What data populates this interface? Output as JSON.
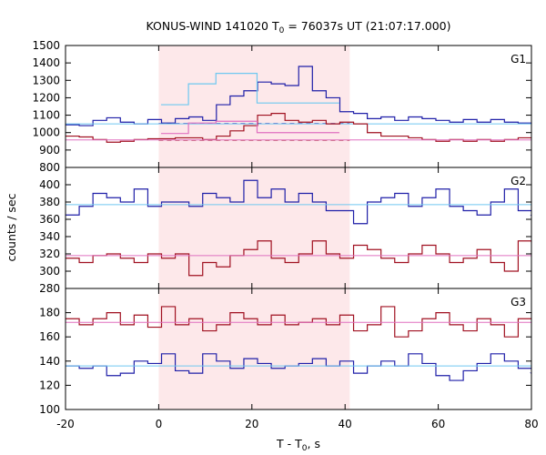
{
  "chart_data": {
    "type": "line",
    "title": "KONUS-WIND 141020 T",
    "title_sub": "0",
    "title_rest": " = 76037s UT (21:07:17.000)",
    "xlabel_pre": "T - T",
    "xlabel_sub": "0",
    "xlabel_post": ", s",
    "ylabel": "counts / sec",
    "xlim": [
      -20,
      80
    ],
    "xticks": [
      "-20",
      "0",
      "20",
      "40",
      "60",
      "80"
    ],
    "highlight_interval": [
      0,
      41
    ],
    "highlight_color": "#fde8ea",
    "step": 2.944,
    "panels": [
      {
        "label": "G1",
        "ylim": [
          800,
          1500
        ],
        "yticks": [
          "800",
          "900",
          "1000",
          "1100",
          "1200",
          "1300",
          "1400",
          "1500"
        ],
        "series": [
          {
            "color": "#1f1fa8",
            "style": "step",
            "x_start": -20,
            "values": [
              1045,
              1040,
              1070,
              1085,
              1060,
              1050,
              1075,
              1055,
              1080,
              1090,
              1070,
              1160,
              1210,
              1240,
              1290,
              1280,
              1270,
              1380,
              1240,
              1200,
              1120,
              1110,
              1080,
              1090,
              1070,
              1090,
              1080,
              1070,
              1060,
              1075,
              1060,
              1075,
              1060,
              1055,
              1070,
              1060
            ]
          },
          {
            "color": "#6fc8f0",
            "style": "step",
            "x_start": 0.5,
            "values": [
              1160,
              1160,
              1280,
              1280,
              1340,
              1340,
              1340,
              1170,
              1170,
              1170,
              1170,
              1170,
              1170
            ]
          },
          {
            "color": "#1f1fa8",
            "style": "dashed",
            "x": [
              0,
              41
            ],
            "y": [
              1052,
              1052
            ]
          },
          {
            "color": "#6fc8f0",
            "style": "flat",
            "x": [
              -20,
              80
            ],
            "y": [
              1050,
              1050
            ]
          },
          {
            "color": "#a01020",
            "style": "step",
            "x_start": -20,
            "values": [
              980,
              975,
              960,
              945,
              950,
              960,
              965,
              965,
              970,
              970,
              960,
              980,
              1010,
              1040,
              1100,
              1110,
              1070,
              1060,
              1070,
              1050,
              1060,
              1050,
              1000,
              980,
              980,
              970,
              960,
              950,
              960,
              950,
              960,
              950,
              960,
              970,
              950,
              960
            ]
          },
          {
            "color": "#e070c0",
            "style": "step",
            "x_start": 0.5,
            "values": [
              995,
              995,
              1055,
              1055,
              1065,
              1065,
              1065,
              1000,
              1000,
              1000,
              1000,
              1000,
              1000
            ]
          },
          {
            "color": "#a01020",
            "style": "dashed",
            "x": [
              0,
              41
            ],
            "y": [
              956,
              956
            ]
          },
          {
            "color": "#e070c0",
            "style": "flat",
            "x": [
              -20,
              80
            ],
            "y": [
              958,
              958
            ]
          }
        ]
      },
      {
        "label": "G2",
        "ylim": [
          280,
          420
        ],
        "yticks": [
          "280",
          "300",
          "320",
          "340",
          "360",
          "380",
          "400"
        ],
        "series": [
          {
            "color": "#1f1fa8",
            "style": "step",
            "x_start": -20,
            "values": [
              365,
              375,
              390,
              385,
              380,
              395,
              375,
              380,
              380,
              375,
              390,
              385,
              380,
              405,
              385,
              395,
              380,
              390,
              380,
              370,
              370,
              355,
              380,
              385,
              390,
              375,
              385,
              395,
              375,
              370,
              365,
              380,
              395,
              370,
              365,
              380,
              375,
              365
            ]
          },
          {
            "color": "#6fc8f0",
            "style": "flat",
            "x": [
              -20,
              80
            ],
            "y": [
              377,
              377
            ]
          },
          {
            "color": "#a01020",
            "style": "step",
            "x_start": -20,
            "values": [
              315,
              310,
              318,
              320,
              315,
              310,
              320,
              315,
              320,
              295,
              310,
              305,
              318,
              325,
              335,
              315,
              310,
              320,
              335,
              320,
              315,
              330,
              325,
              315,
              310,
              320,
              330,
              320,
              310,
              315,
              325,
              310,
              300,
              335,
              320,
              305,
              315,
              320
            ]
          },
          {
            "color": "#e070c0",
            "style": "flat",
            "x": [
              -20,
              80
            ],
            "y": [
              318,
              318
            ]
          }
        ]
      },
      {
        "label": "G3",
        "ylim": [
          100,
          200
        ],
        "yticks": [
          "100",
          "120",
          "140",
          "160",
          "180"
        ],
        "series": [
          {
            "color": "#a01020",
            "style": "step",
            "x_start": -20,
            "values": [
              175,
              170,
              175,
              180,
              170,
              178,
              168,
              185,
              170,
              175,
              165,
              170,
              180,
              175,
              170,
              178,
              170,
              172,
              175,
              170,
              178,
              165,
              170,
              185,
              160,
              165,
              175,
              180,
              170,
              165,
              175,
              170,
              160,
              175,
              180,
              165,
              175,
              170,
              180
            ]
          },
          {
            "color": "#e070c0",
            "style": "flat",
            "x": [
              -20,
              80
            ],
            "y": [
              172,
              172
            ]
          },
          {
            "color": "#1f1fa8",
            "style": "step",
            "x_start": -20,
            "values": [
              136,
              134,
              136,
              128,
              130,
              140,
              138,
              146,
              132,
              130,
              146,
              140,
              134,
              142,
              138,
              134,
              136,
              138,
              142,
              136,
              140,
              130,
              136,
              140,
              136,
              146,
              138,
              128,
              124,
              132,
              138,
              146,
              140,
              134,
              130,
              122,
              134,
              142,
              136,
              138
            ]
          },
          {
            "color": "#6fc8f0",
            "style": "flat",
            "x": [
              -20,
              80
            ],
            "y": [
              136,
              136
            ]
          }
        ]
      }
    ]
  }
}
